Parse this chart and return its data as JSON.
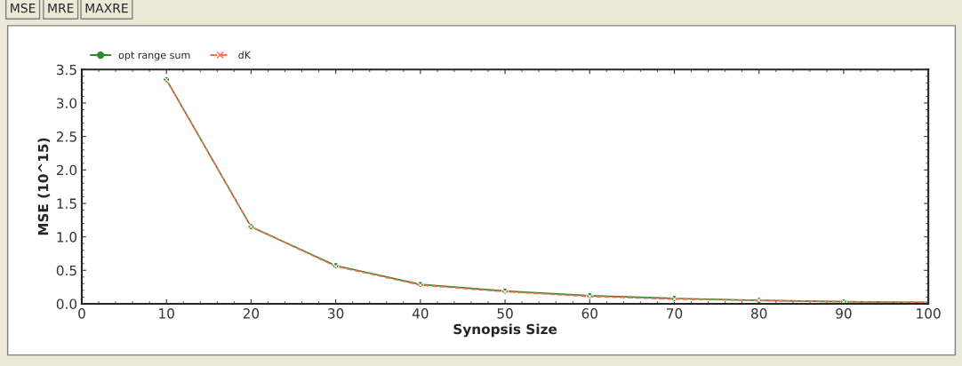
{
  "chart_data": {
    "type": "line",
    "xlabel": "Synopsis Size",
    "ylabel": "MSE (10^15)",
    "annotations": [
      "MSE",
      "MRE",
      "MAXRE"
    ],
    "x": [
      10,
      20,
      30,
      40,
      50,
      60,
      70,
      80,
      90,
      100
    ],
    "series": [
      {
        "name": "opt range sum",
        "color": "#2e8b2e",
        "marker": "circle",
        "line_style": "solid",
        "values": [
          3.35,
          1.15,
          0.57,
          0.29,
          0.19,
          0.12,
          0.08,
          0.05,
          0.03,
          0.02
        ]
      },
      {
        "name": "dK",
        "color": "#f07050",
        "marker": "cross",
        "line_style": "dashed",
        "values": [
          3.35,
          1.15,
          0.56,
          0.28,
          0.18,
          0.11,
          0.07,
          0.05,
          0.03,
          0.02
        ]
      }
    ],
    "xlim": [
      0,
      100
    ],
    "xticks": [
      0,
      10,
      20,
      30,
      40,
      50,
      60,
      70,
      80,
      90,
      100
    ],
    "ylim": [
      0,
      3.5
    ],
    "yticks": [
      {
        "value": 0,
        "label": "0.0"
      },
      {
        "value": 0.5,
        "label": "0.5"
      },
      {
        "value": 1,
        "label": "1.0"
      },
      {
        "value": 1.5,
        "label": "1.5"
      },
      {
        "value": 2,
        "label": "2.0"
      },
      {
        "value": 2.5,
        "label": "2.5"
      },
      {
        "value": 3,
        "label": "3.0"
      },
      {
        "value": 3.5,
        "label": "3.5"
      }
    ],
    "grid": false,
    "legend": "top left"
  }
}
